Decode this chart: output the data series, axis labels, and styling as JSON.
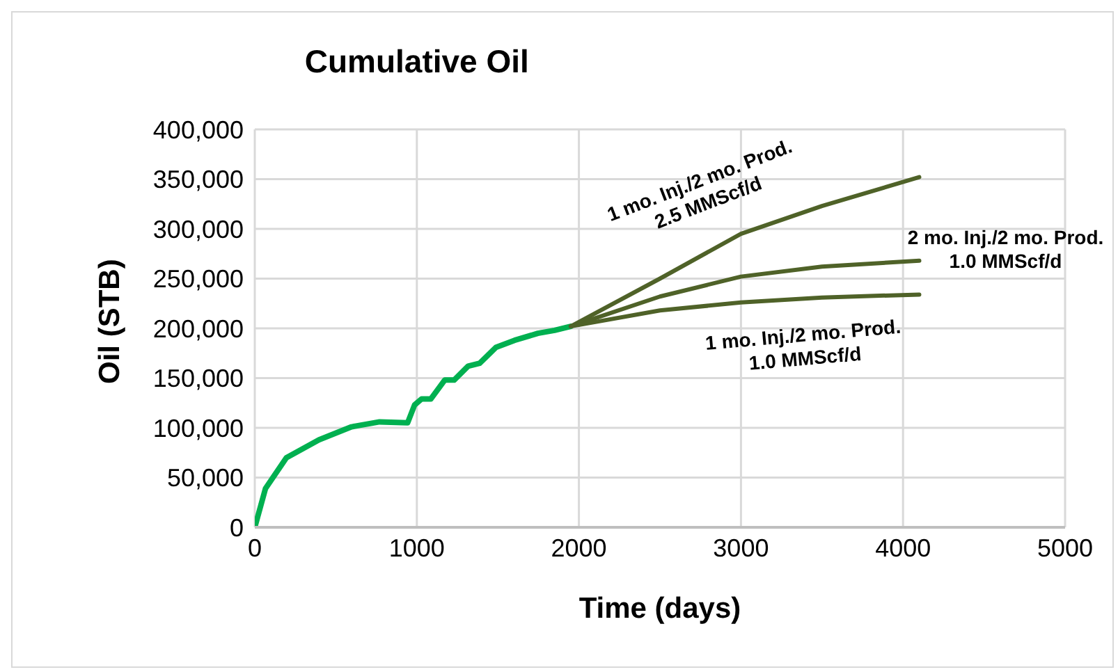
{
  "chart_data": {
    "type": "line",
    "title": "Cumulative Oil",
    "xlabel": "Time (days)",
    "ylabel": "Oil (STB)",
    "xlim": [
      0,
      5000
    ],
    "xticks": [
      0,
      1000,
      2000,
      3000,
      4000,
      5000
    ],
    "ylim": [
      0,
      400000
    ],
    "yticks": [
      {
        "value": 0,
        "label": "0"
      },
      {
        "value": 50000,
        "label": "50,000"
      },
      {
        "value": 100000,
        "label": "100,000"
      },
      {
        "value": 150000,
        "label": "150,000"
      },
      {
        "value": 200000,
        "label": "200,000"
      },
      {
        "value": 250000,
        "label": "250,000"
      },
      {
        "value": 300000,
        "label": "300,000"
      },
      {
        "value": 350000,
        "label": "350,000"
      },
      {
        "value": 400000,
        "label": "400,000"
      }
    ],
    "grid": true,
    "marker": "none",
    "line_style": "solid",
    "series": [
      {
        "color": "#00b050",
        "x": [
          0,
          66,
          195,
          396,
          597,
          770,
          943,
          986,
          1029,
          1086,
          1172,
          1230,
          1316,
          1388,
          1489,
          1603,
          1747,
          1850,
          1950
        ],
        "values": [
          0,
          39000,
          70000,
          88000,
          101000,
          106000,
          105000,
          123000,
          129000,
          129000,
          148000,
          148000,
          162000,
          165000,
          181000,
          188000,
          195000,
          198000,
          202000
        ]
      },
      {
        "name": "1 mo. Inj./2 mo. Prod. 2.5 MMScf/d",
        "color": "#4f6228",
        "x": [
          1950,
          2500,
          3000,
          3500,
          4100
        ],
        "values": [
          202000,
          250000,
          295000,
          323000,
          352000
        ]
      },
      {
        "name": "2 mo. Inj./2 mo. Prod. 1.0 MMScf/d",
        "color": "#4f6228",
        "x": [
          1950,
          2500,
          3000,
          3500,
          4100
        ],
        "values": [
          202000,
          232000,
          252000,
          262000,
          268000
        ]
      },
      {
        "name": "1 mo. Inj./2 mo. Prod. 1.0 MMScf/d",
        "color": "#4f6228",
        "x": [
          1950,
          2500,
          3000,
          3500,
          4100
        ],
        "values": [
          202000,
          218000,
          226000,
          231000,
          234000
        ]
      }
    ]
  }
}
